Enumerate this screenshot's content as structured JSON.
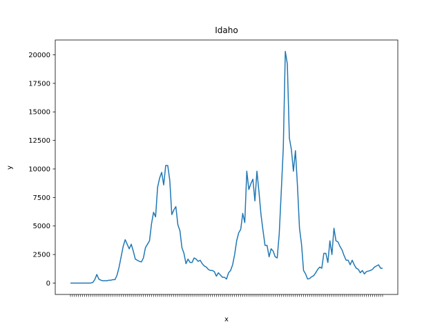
{
  "chart_data": {
    "type": "line",
    "title": "Idaho",
    "xlabel": "x",
    "ylabel": "y",
    "ylim": [
      -1000,
      21300
    ],
    "yticks": [
      0,
      2500,
      5000,
      7500,
      10000,
      12500,
      15000,
      17500,
      20000
    ],
    "grid": false,
    "series_color": "#1f77b4",
    "x_tick_labels_note": "",
    "values": [
      0,
      0,
      0,
      0,
      0,
      0,
      0,
      0,
      0,
      0,
      0,
      50,
      300,
      750,
      350,
      250,
      200,
      200,
      200,
      250,
      250,
      300,
      300,
      700,
      1400,
      2300,
      3200,
      3800,
      3400,
      3000,
      3400,
      2800,
      2100,
      2000,
      1900,
      1850,
      2200,
      3100,
      3400,
      3700,
      5200,
      6200,
      5800,
      8400,
      9200,
      9700,
      8600,
      10300,
      10300,
      9000,
      6000,
      6400,
      6700,
      5100,
      4600,
      3100,
      2600,
      1700,
      2100,
      1800,
      1800,
      2200,
      2100,
      1900,
      2000,
      1700,
      1500,
      1400,
      1200,
      1100,
      1100,
      1000,
      600,
      900,
      700,
      500,
      500,
      350,
      900,
      1100,
      1600,
      2500,
      3700,
      4400,
      4700,
      6100,
      5300,
      9800,
      8200,
      8700,
      9100,
      7200,
      9800,
      8000,
      6000,
      4600,
      3300,
      3300,
      2300,
      3000,
      2800,
      2300,
      2200,
      4300,
      8000,
      11800,
      20300,
      19200,
      12700,
      11700,
      9800,
      11600,
      8500,
      4800,
      3400,
      1100,
      800,
      350,
      400,
      550,
      650,
      900,
      1200,
      1400,
      1300,
      2600,
      2600,
      1800,
      3700,
      2500,
      4800,
      3700,
      3600,
      3200,
      2900,
      2400,
      2000,
      2000,
      1600,
      2000,
      1600,
      1300,
      1200,
      900,
      1100,
      800,
      1000,
      1050,
      1100,
      1200,
      1400,
      1500,
      1600,
      1300,
      1300
    ]
  }
}
